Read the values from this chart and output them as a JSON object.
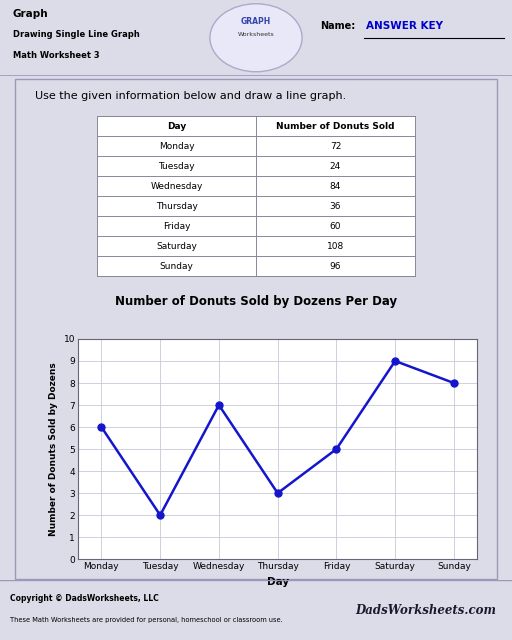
{
  "title": "Graph",
  "subtitle1": "Drawing Single Line Graph",
  "subtitle2": "Math Worksheet 3",
  "name_label": "Name:",
  "answer_key": "ANSWER KEY",
  "instruction": "Use the given information below and draw a line graph.",
  "table_headers": [
    "Day",
    "Number of Donuts Sold"
  ],
  "table_data": [
    [
      "Monday",
      "72"
    ],
    [
      "Tuesday",
      "24"
    ],
    [
      "Wednesday",
      "84"
    ],
    [
      "Thursday",
      "36"
    ],
    [
      "Friday",
      "60"
    ],
    [
      "Saturday",
      "108"
    ],
    [
      "Sunday",
      "96"
    ]
  ],
  "graph_title": "Number of Donuts Sold by Dozens Per Day",
  "x_label": "Day",
  "y_label": "Number of Donuts Sold by Dozens",
  "days": [
    "Monday",
    "Tuesday",
    "Wednesday",
    "Thursday",
    "Friday",
    "Saturday",
    "Sunday"
  ],
  "y_values": [
    6,
    2,
    7,
    3,
    5,
    9,
    8
  ],
  "y_min": 0,
  "y_max": 10,
  "y_ticks": [
    0,
    1,
    2,
    3,
    4,
    5,
    6,
    7,
    8,
    9,
    10
  ],
  "line_color": "#1515cc",
  "marker_color": "#1515cc",
  "grid_color": "#c8c8d8",
  "plot_bg": "#ffffff",
  "page_bg": "#dcdce8",
  "content_bg": "#ebebf5",
  "footer_bg": "#c8c8d8",
  "footer_text": "Copyright © DadsWorksheets, LLC",
  "footer_subtext": "These Math Worksheets are provided for personal, homeschool or classroom use."
}
